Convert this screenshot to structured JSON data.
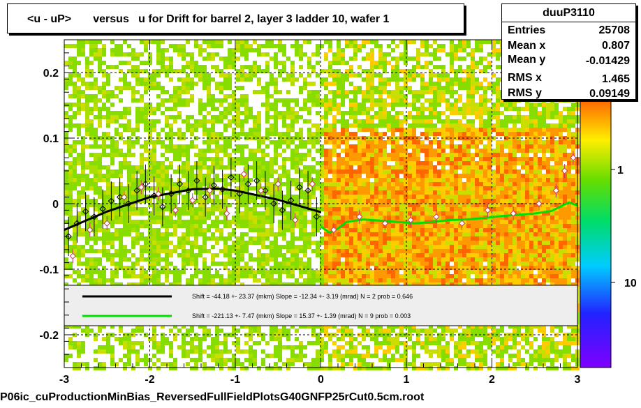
{
  "footer": "P06ic_cuProductionMinBias_ReversedFullFieldPlotsG40GNFP25rCut0.5cm.root",
  "stats": {
    "name": "duuP3110",
    "rows": [
      {
        "label": "Entries",
        "value": "25708"
      },
      {
        "label": "Mean x",
        "value": "0.807"
      },
      {
        "label": "Mean y",
        "value": "-0.01429"
      },
      {
        "label": "RMS x",
        "value": "1.465"
      },
      {
        "label": "RMS y",
        "value": "0.09149"
      }
    ]
  },
  "colors": {
    "frame": "#000000",
    "fit_black": "#000000",
    "fit_green": "#00dd00",
    "band_fill": "#eeeeee",
    "palette_top": "#ff6600",
    "palette_bottom": "#7f00ff"
  },
  "chart_data": {
    "type": "heatmap",
    "title": "<u - uP>       versus   u for Drift for barrel 2, layer 3 ladder 10, wafer 1",
    "xlim": [
      -3,
      3
    ],
    "ylim": [
      -0.25,
      0.25
    ],
    "x_ticks": [
      -3,
      -2,
      -1,
      0,
      1,
      2,
      3
    ],
    "y_ticks": [
      -0.2,
      -0.1,
      0,
      0.1,
      0.2
    ],
    "x_tick_labels": [
      "-3",
      "-2",
      "-1",
      "0",
      "1",
      "2",
      "3"
    ],
    "y_tick_labels": [
      "-0.2",
      "-0.1",
      "0",
      "0.1",
      "0.2"
    ],
    "grid": true,
    "palette_labels": [
      "1",
      "10"
    ],
    "fits": [
      {
        "label": "Shift =   -44.18 +- 23.37 (mkm) Slope =   -12.34 +- 3.19 (mrad)  N = 2 prob = 0.646",
        "color": "#000000",
        "x": [
          -3.0,
          -2.5,
          -2.0,
          -1.5,
          -1.2,
          -1.0,
          -0.5,
          0.0
        ],
        "y": [
          -0.04,
          -0.012,
          0.01,
          0.022,
          0.023,
          0.02,
          0.006,
          -0.013
        ]
      },
      {
        "label": "Shift =   -221.13 +- 7.47 (mkm) Slope =    15.37 +- 1.39 (mrad)  N = 9 prob = 0.003",
        "color": "#00dd00",
        "x": [
          0.0,
          0.1,
          0.2,
          0.3,
          0.5,
          0.7,
          0.9,
          1.1,
          1.3,
          1.5,
          1.7,
          1.9,
          2.1,
          2.3,
          2.5,
          2.7,
          2.9,
          3.0
        ],
        "y": [
          -0.035,
          -0.044,
          -0.038,
          -0.028,
          -0.024,
          -0.026,
          -0.028,
          -0.03,
          -0.028,
          -0.025,
          -0.024,
          -0.022,
          -0.019,
          -0.017,
          -0.015,
          -0.011,
          0.002,
          -0.003
        ]
      }
    ],
    "profile_points_black": {
      "x": [
        -2.95,
        -2.85,
        -2.75,
        -2.65,
        -2.55,
        -2.45,
        -2.35,
        -2.25,
        -2.15,
        -2.05,
        -1.95,
        -1.85,
        -1.75,
        -1.65,
        -1.55,
        -1.45,
        -1.35,
        -1.25,
        -1.15,
        -1.05,
        -0.95,
        -0.85,
        -0.75,
        -0.65,
        -0.55,
        -0.45,
        -0.35,
        -0.25,
        -0.15,
        -0.05
      ],
      "y": [
        -0.05,
        -0.03,
        -0.012,
        -0.02,
        -0.008,
        0.004,
        0.01,
        0.0,
        0.02,
        0.03,
        0.012,
        -0.005,
        0.015,
        0.03,
        0.02,
        0.035,
        0.01,
        0.028,
        0.022,
        0.04,
        0.015,
        0.03,
        0.035,
        0.02,
        0.0,
        -0.01,
        0.005,
        0.025,
        0.02,
        -0.02
      ]
    },
    "profile_points_pink": {
      "x": [
        -2.9,
        -2.7,
        -2.5,
        -2.3,
        -2.1,
        -1.9,
        -1.7,
        -1.5,
        -1.3,
        -1.1,
        -0.9,
        -0.7,
        -0.5,
        -0.3,
        -0.1,
        0.15,
        0.45,
        0.75,
        1.05,
        1.35,
        1.65,
        1.95,
        2.25,
        2.55,
        2.75,
        2.85,
        2.95
      ],
      "y": [
        -0.08,
        -0.04,
        -0.03,
        0.01,
        0.025,
        0.015,
        -0.01,
        0.005,
        0.02,
        -0.015,
        0.045,
        0.02,
        0.03,
        -0.025,
        0.03,
        -0.04,
        -0.02,
        -0.03,
        -0.025,
        -0.02,
        -0.03,
        -0.01,
        -0.015,
        0.0,
        0.02,
        0.05,
        0.07
      ]
    }
  }
}
